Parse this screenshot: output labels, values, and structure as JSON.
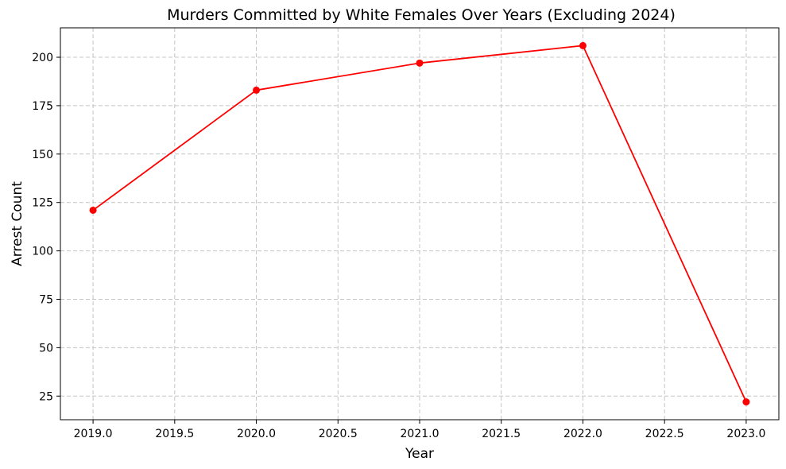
{
  "chart_data": {
    "type": "line",
    "title": "Murders Committed by White Females Over Years (Excluding 2024)",
    "xlabel": "Year",
    "ylabel": "Arrest Count",
    "xlim": [
      2018.8,
      2023.2
    ],
    "ylim": [
      12.8,
      215.2
    ],
    "xticks": [
      2019.0,
      2019.5,
      2020.0,
      2020.5,
      2021.0,
      2021.5,
      2022.0,
      2022.5,
      2023.0
    ],
    "xtick_labels": [
      "2019.0",
      "2019.5",
      "2020.0",
      "2020.5",
      "2021.0",
      "2021.5",
      "2022.0",
      "2022.5",
      "2023.0"
    ],
    "yticks": [
      25,
      50,
      75,
      100,
      125,
      150,
      175,
      200
    ],
    "ytick_labels": [
      "25",
      "50",
      "75",
      "100",
      "125",
      "150",
      "175",
      "200"
    ],
    "grid": true,
    "legend": "none",
    "series": [
      {
        "x": [
          2019,
          2020,
          2021,
          2022,
          2023
        ],
        "y": [
          121,
          183,
          197,
          206,
          22
        ],
        "color": "#ff0000",
        "marker": "circle"
      }
    ]
  }
}
